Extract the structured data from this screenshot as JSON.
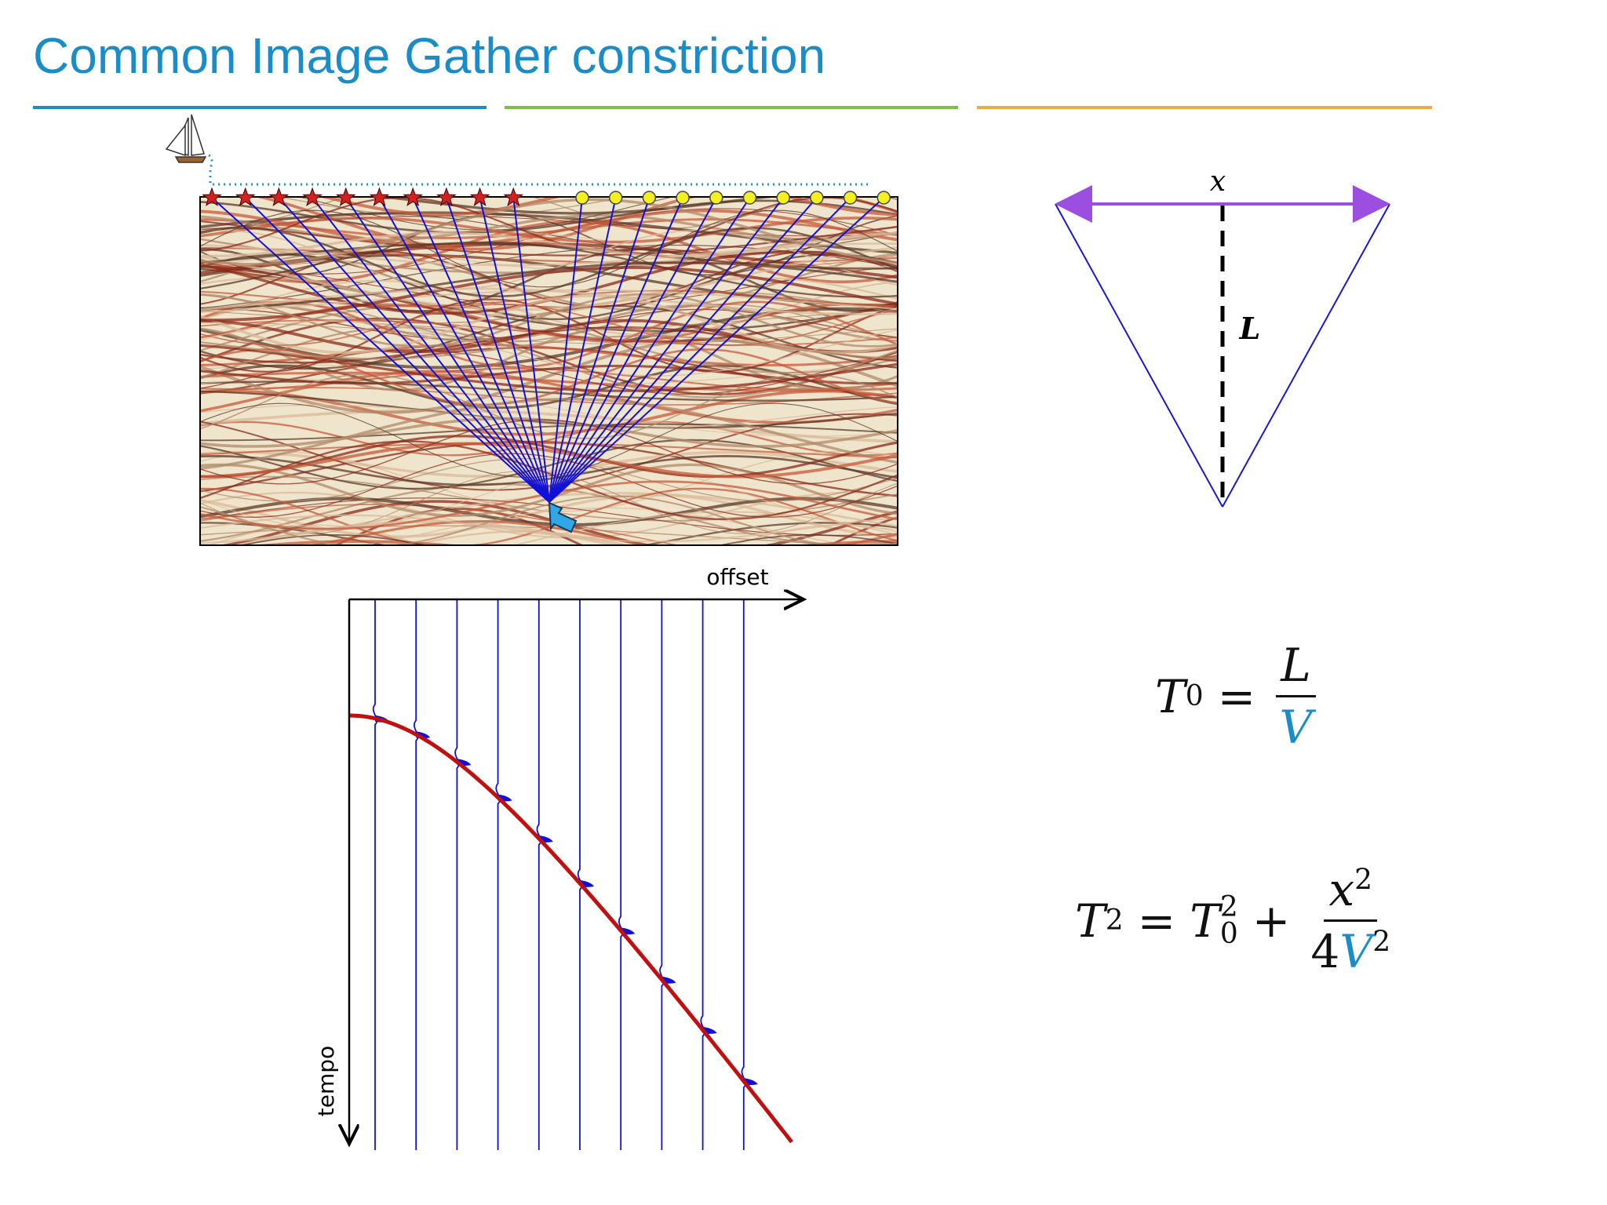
{
  "header": {
    "title": "Common Image Gather constriction"
  },
  "gather": {
    "x_label": "offset",
    "y_label": "tempo"
  },
  "triangle": {
    "top_label": "x",
    "height_label": "L"
  },
  "equations": [
    {
      "lhs_base": "T",
      "lhs_sub": "0",
      "op": "=",
      "num": "L",
      "den": "V"
    },
    {
      "lhs_base": "T",
      "lhs_sup": "2",
      "op": "=",
      "t_base": "T",
      "t_sub": "0",
      "t_sup": "2",
      "plus": "+",
      "num_base": "x",
      "num_sup": "2",
      "den_coef": "4",
      "den_base": "V",
      "den_sup": "2"
    }
  ]
}
